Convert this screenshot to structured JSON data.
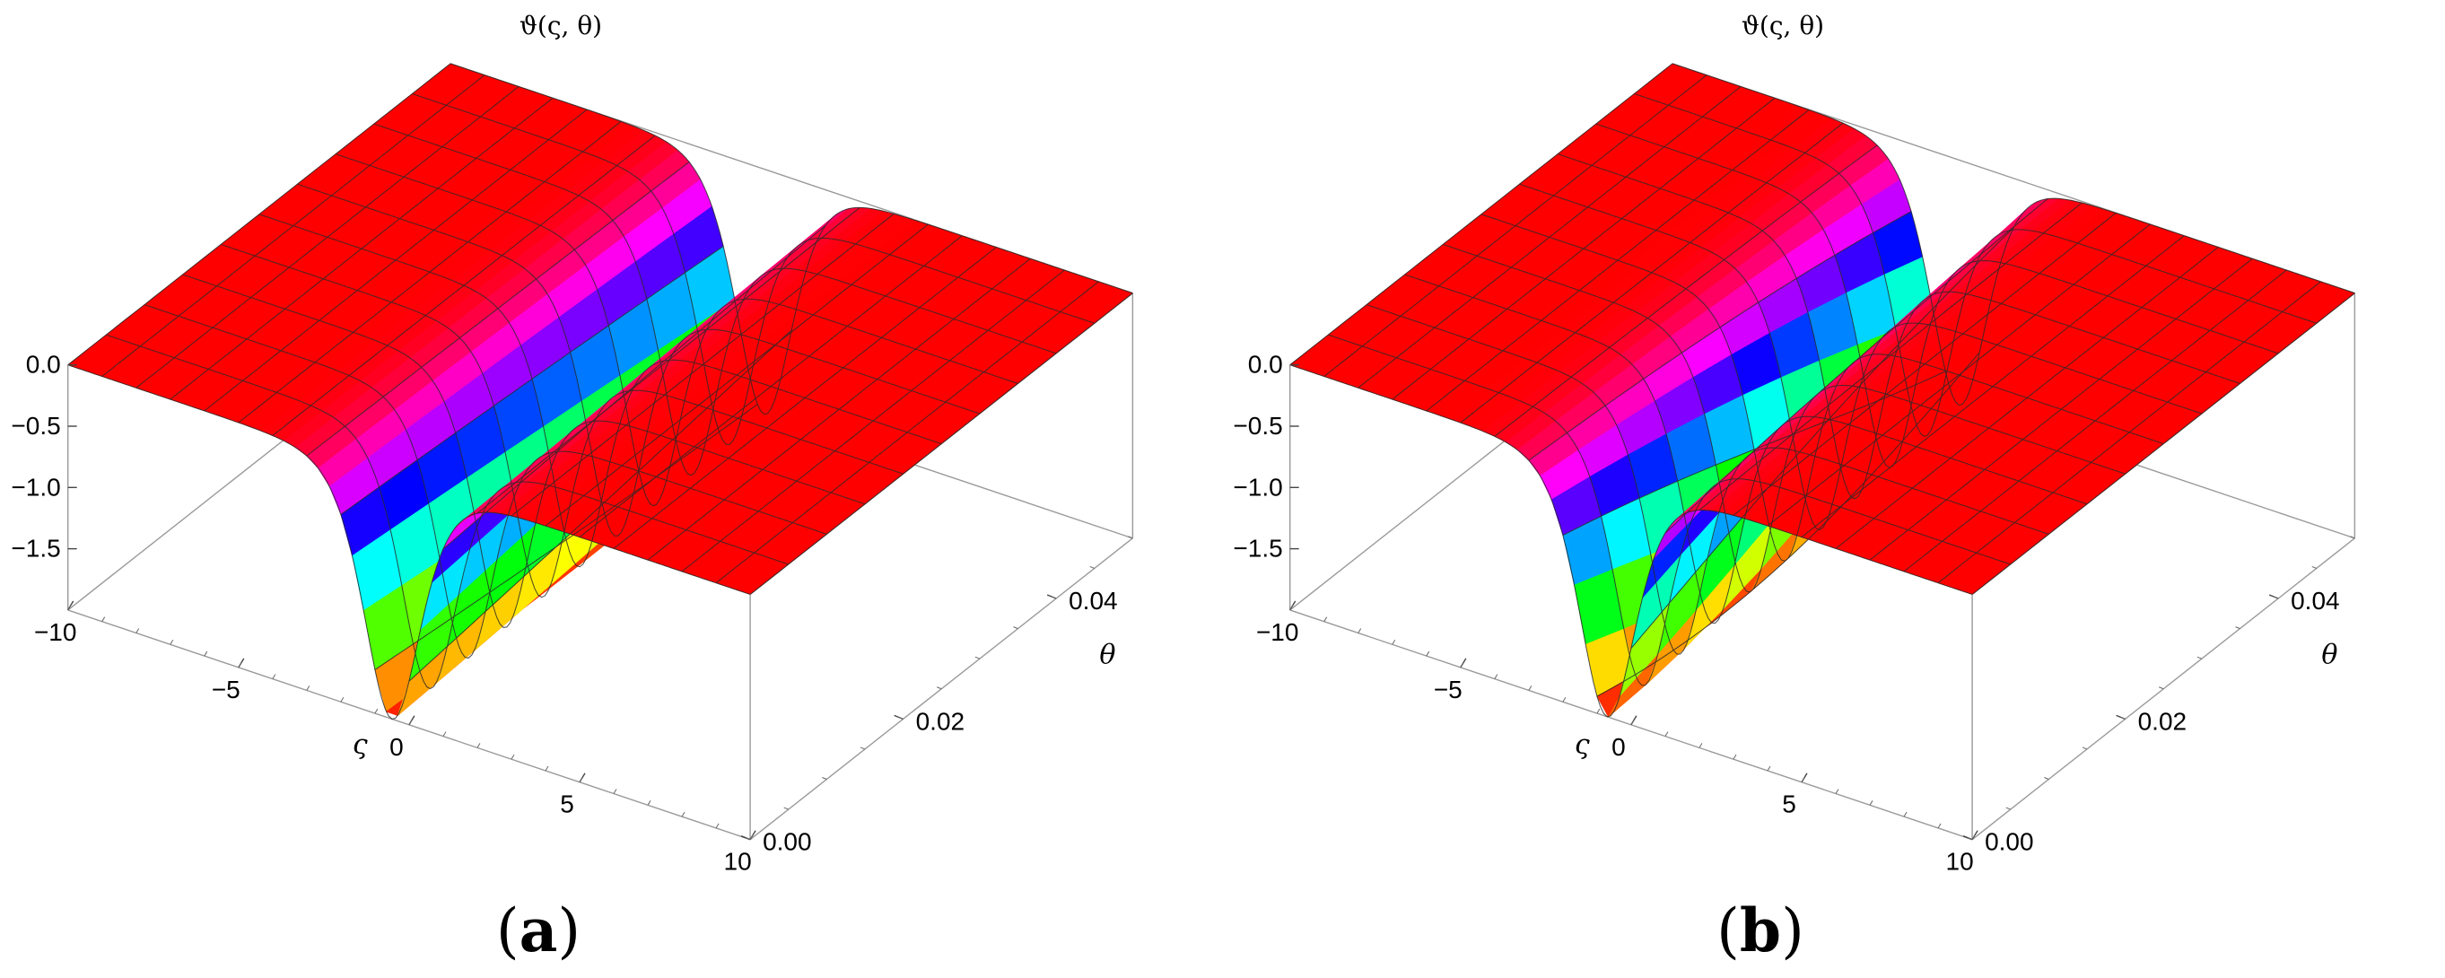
{
  "chart_data": [
    {
      "type": "surface3d",
      "title": "ϑ(ς, θ)",
      "panel_label": "a",
      "x_axis": {
        "label": "ς",
        "range": [
          -10,
          10
        ],
        "ticks": [
          "−10",
          "−5",
          "0",
          "5",
          "10"
        ]
      },
      "y_axis": {
        "label": "θ",
        "range": [
          0,
          0.05
        ],
        "ticks": [
          "0.00",
          "0.02",
          "0.04"
        ]
      },
      "z_axis": {
        "label": "",
        "range": [
          -2,
          0
        ],
        "ticks": [
          "0.0",
          "−0.5",
          "−1.0",
          "−1.5"
        ]
      },
      "surface": {
        "description_function": "single dark-soliton trough; ϑ ≈ −A·sech²(ς − x0)",
        "depth": 2.0,
        "center_at_theta_0": -0.5,
        "center_at_theta_max": -0.8
      },
      "colormap": [
        "#ff0000",
        "#ff00ff",
        "#0000ff",
        "#00ffff",
        "#00ff00",
        "#ffff00",
        "#ff0000"
      ]
    },
    {
      "type": "surface3d",
      "title": "ϑ(ς, θ)",
      "panel_label": "b",
      "x_axis": {
        "label": "ς",
        "range": [
          -10,
          10
        ],
        "ticks": [
          "−10",
          "−5",
          "0",
          "5",
          "10"
        ]
      },
      "y_axis": {
        "label": "θ",
        "range": [
          0,
          0.05
        ],
        "ticks": [
          "0.00",
          "0.02",
          "0.04"
        ]
      },
      "z_axis": {
        "label": "",
        "range": [
          -2,
          0
        ],
        "ticks": [
          "0.0",
          "−0.5",
          "−1.0",
          "−1.5"
        ]
      },
      "surface": {
        "description_function": "single dark-soliton trough; ϑ ≈ −A·sech²(ς − x0)",
        "depth": 2.0,
        "center_at_theta_0": -0.7,
        "center_at_theta_max": -1.6
      },
      "colormap": [
        "#ff0000",
        "#ff00ff",
        "#0000ff",
        "#00ffff",
        "#00ff00",
        "#ffff00",
        "#ff0000"
      ]
    }
  ]
}
